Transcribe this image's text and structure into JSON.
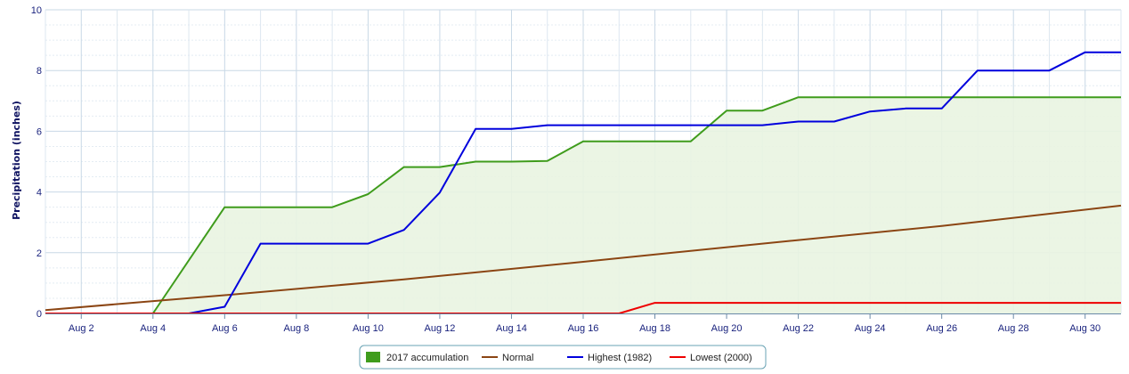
{
  "chart_data": {
    "type": "line",
    "title": "",
    "ylabel": "Precipitation (inches)",
    "xlabel": "",
    "x_range": [
      1,
      31
    ],
    "ylim": [
      0,
      10
    ],
    "y_ticks": [
      0,
      2,
      4,
      6,
      8,
      10
    ],
    "x_ticks": [
      {
        "day": 2,
        "label": "Aug 2"
      },
      {
        "day": 4,
        "label": "Aug 4"
      },
      {
        "day": 6,
        "label": "Aug 6"
      },
      {
        "day": 8,
        "label": "Aug 8"
      },
      {
        "day": 10,
        "label": "Aug 10"
      },
      {
        "day": 12,
        "label": "Aug 12"
      },
      {
        "day": 14,
        "label": "Aug 14"
      },
      {
        "day": 16,
        "label": "Aug 16"
      },
      {
        "day": 18,
        "label": "Aug 18"
      },
      {
        "day": 20,
        "label": "Aug 20"
      },
      {
        "day": 22,
        "label": "Aug 22"
      },
      {
        "day": 24,
        "label": "Aug 24"
      },
      {
        "day": 26,
        "label": "Aug 26"
      },
      {
        "day": 28,
        "label": "Aug 28"
      },
      {
        "day": 30,
        "label": "Aug 30"
      }
    ],
    "grid": true,
    "legend_position": "bottom-center",
    "series": [
      {
        "name": "2017 accumulation",
        "style": "area",
        "color": "#3f9c1c",
        "fill": "#e9f4e1",
        "points": [
          [
            4,
            0
          ],
          [
            6,
            3.5
          ],
          [
            7,
            3.5
          ],
          [
            8,
            3.5
          ],
          [
            9,
            3.5
          ],
          [
            10,
            3.93
          ],
          [
            11,
            4.82
          ],
          [
            12,
            4.82
          ],
          [
            13,
            5.0
          ],
          [
            14,
            5.0
          ],
          [
            15,
            5.02
          ],
          [
            16,
            5.67
          ],
          [
            17,
            5.67
          ],
          [
            18,
            5.67
          ],
          [
            19,
            5.67
          ],
          [
            20,
            6.68
          ],
          [
            21,
            6.68
          ],
          [
            22,
            7.12
          ],
          [
            23,
            7.12
          ],
          [
            24,
            7.12
          ],
          [
            25,
            7.12
          ],
          [
            26,
            7.12
          ],
          [
            27,
            7.12
          ],
          [
            28,
            7.12
          ],
          [
            29,
            7.12
          ],
          [
            30,
            7.12
          ],
          [
            31,
            7.12
          ]
        ]
      },
      {
        "name": "Normal",
        "style": "line",
        "color": "#8b4513",
        "points": [
          [
            1,
            0.11
          ],
          [
            6,
            0.6
          ],
          [
            11,
            1.12
          ],
          [
            16,
            1.7
          ],
          [
            21,
            2.3
          ],
          [
            26,
            2.88
          ],
          [
            31,
            3.55
          ]
        ]
      },
      {
        "name": "Highest (1982)",
        "style": "line",
        "color": "#0000dd",
        "points": [
          [
            1,
            0
          ],
          [
            5,
            0
          ],
          [
            6,
            0.22
          ],
          [
            7,
            2.3
          ],
          [
            8,
            2.3
          ],
          [
            9,
            2.3
          ],
          [
            10,
            2.3
          ],
          [
            11,
            2.75
          ],
          [
            12,
            3.98
          ],
          [
            13,
            6.08
          ],
          [
            14,
            6.08
          ],
          [
            15,
            6.2
          ],
          [
            16,
            6.2
          ],
          [
            17,
            6.2
          ],
          [
            18,
            6.2
          ],
          [
            19,
            6.2
          ],
          [
            20,
            6.2
          ],
          [
            21,
            6.2
          ],
          [
            22,
            6.32
          ],
          [
            23,
            6.32
          ],
          [
            24,
            6.65
          ],
          [
            25,
            6.75
          ],
          [
            26,
            6.75
          ],
          [
            27,
            8.0
          ],
          [
            28,
            8.0
          ],
          [
            29,
            8.0
          ],
          [
            30,
            8.6
          ],
          [
            31,
            8.6
          ]
        ]
      },
      {
        "name": "Lowest (2000)",
        "style": "line",
        "color": "#ee0000",
        "points": [
          [
            1,
            0
          ],
          [
            17,
            0
          ],
          [
            18,
            0.35
          ],
          [
            19,
            0.35
          ],
          [
            20,
            0.35
          ],
          [
            21,
            0.35
          ],
          [
            22,
            0.35
          ],
          [
            23,
            0.35
          ],
          [
            24,
            0.35
          ],
          [
            25,
            0.35
          ],
          [
            26,
            0.35
          ],
          [
            27,
            0.35
          ],
          [
            28,
            0.35
          ],
          [
            29,
            0.35
          ],
          [
            30,
            0.35
          ],
          [
            31,
            0.35
          ]
        ]
      }
    ]
  }
}
